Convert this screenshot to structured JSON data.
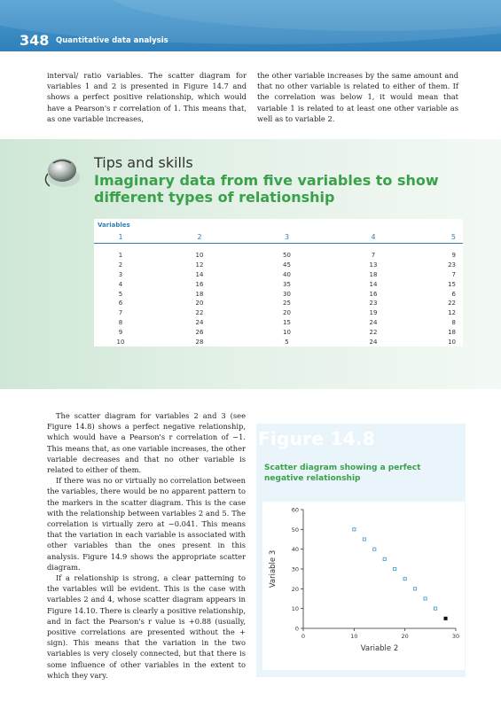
{
  "header": {
    "page_number": "348",
    "running_head": "Quantitative data analysis"
  },
  "intro": {
    "left": "interval/ ratio variables. The scatter diagram for variables 1 and 2 is presented in Figure 14.7 and shows a perfect positive relationship, which would have a Pearson's r correlation of 1. This means that, as one variable increases,",
    "right": "the other variable increases by the same amount and that no other variable is related to either of them. If the correlation was below 1, it would mean that variable 1 is related to at least one other variable as well as to variable 2."
  },
  "tips": {
    "title": "Tips and skills",
    "subtitle": "Imaginary data from five variables to show different types of relationship",
    "table_caption": "Variables",
    "headers": [
      "1",
      "2",
      "3",
      "4",
      "5"
    ],
    "rows": [
      [
        "1",
        "10",
        "50",
        "7",
        "9"
      ],
      [
        "2",
        "12",
        "45",
        "13",
        "23"
      ],
      [
        "3",
        "14",
        "40",
        "18",
        "7"
      ],
      [
        "4",
        "16",
        "35",
        "14",
        "15"
      ],
      [
        "5",
        "18",
        "30",
        "16",
        "6"
      ],
      [
        "6",
        "20",
        "25",
        "23",
        "22"
      ],
      [
        "7",
        "22",
        "20",
        "19",
        "12"
      ],
      [
        "8",
        "24",
        "15",
        "24",
        "8"
      ],
      [
        "9",
        "26",
        "10",
        "22",
        "18"
      ],
      [
        "10",
        "28",
        "5",
        "24",
        "10"
      ]
    ]
  },
  "body": {
    "p1": "The scatter diagram for variables 2 and 3 (see Figure 14.8) shows a perfect negative relationship, which would have a Pearson's r correlation of −1. This means that, as one variable increases, the other variable decreases and that no other variable is related to either of them.",
    "p2": "If there was no or virtually no correlation between the variables, there would be no apparent pattern to the markers in the scatter diagram. This is the case with the relationship between variables 2 and 5. The correlation is virtually zero at −0.041. This means that the variation in each variable is associated with other variables than the ones present in this analysis. Figure 14.9 shows the appropriate scatter diagram.",
    "p3": "If a relationship is strong, a clear patterning to the variables will be evident. This is the case with variables 2 and 4, whose scatter diagram appears in Figure 14.10. There is clearly a positive relationship, and in fact the Pearson's r value is +0.88 (usually, positive correlations are presented without the + sign). This means that the variation in the two variables is very closely connected, but that there is some influence of other variables in the extent to which they vary."
  },
  "figure": {
    "title": "Figure 14.8",
    "caption": "Scatter diagram showing a perfect negative relationship"
  },
  "chart_data": {
    "type": "scatter",
    "title": "",
    "xlabel": "Variable 2",
    "ylabel": "Variable 3",
    "xlim": [
      0,
      30
    ],
    "ylim": [
      0,
      60
    ],
    "xticks": [
      0,
      10,
      20,
      30
    ],
    "yticks": [
      0,
      10,
      20,
      30,
      40,
      50,
      60
    ],
    "x": [
      10,
      12,
      14,
      16,
      18,
      20,
      22,
      24,
      26,
      28
    ],
    "y": [
      50,
      45,
      40,
      35,
      30,
      25,
      20,
      15,
      10,
      5
    ],
    "grid": false,
    "marker_color": "#4d9fd2"
  }
}
